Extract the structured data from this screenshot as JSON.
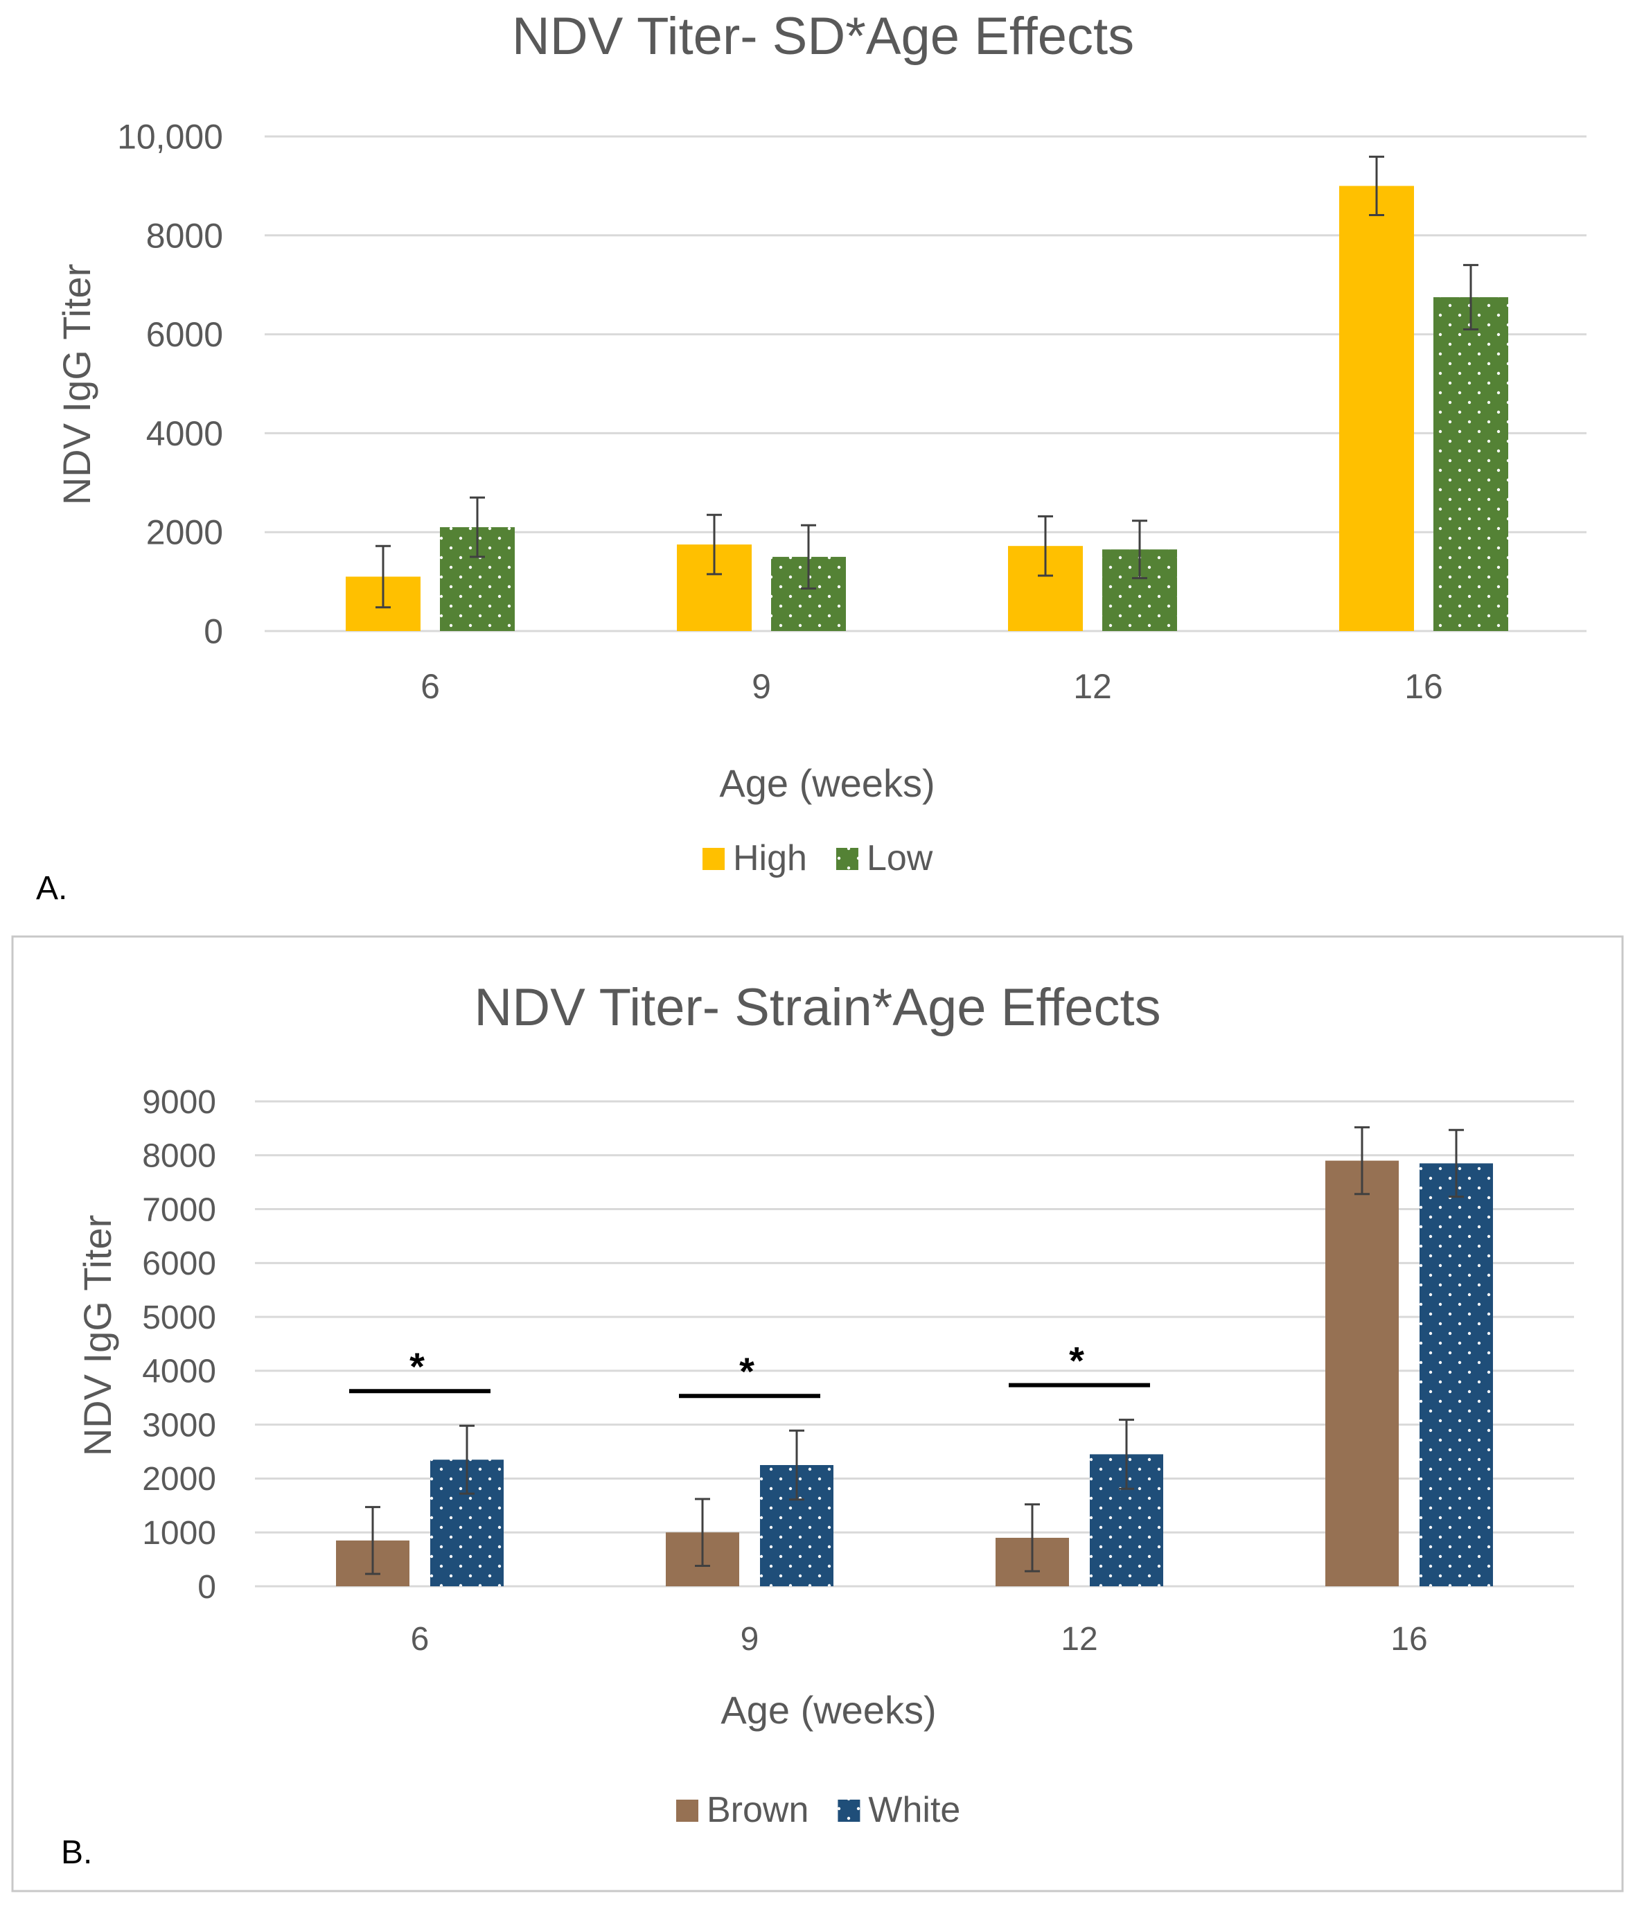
{
  "charts": [
    {
      "panel_label": "A.",
      "chart_data": {
        "type": "bar",
        "title": "NDV Titer- SD*Age Effects",
        "xlabel": "Age (weeks)",
        "ylabel": "NDV IgG Titer",
        "categories": [
          "6",
          "9",
          "12",
          "16"
        ],
        "ylim": [
          0,
          10000
        ],
        "yticks": [
          0,
          2000,
          4000,
          6000,
          8000,
          10000
        ],
        "ytick_labels": [
          "0",
          "2000",
          "4000",
          "6000",
          "8000",
          "10,000"
        ],
        "grid": true,
        "legend_position": "bottom",
        "series": [
          {
            "name": "High",
            "color": "#FFC000",
            "pattern": "solid",
            "values": [
              1100,
              1750,
              1720,
              9000
            ],
            "errors": [
              620,
              600,
              600,
              590
            ]
          },
          {
            "name": "Low",
            "color": "#548235",
            "pattern": "dotted",
            "values": [
              2100,
              1500,
              1650,
              6750
            ],
            "errors": [
              600,
              640,
              580,
              650
            ]
          }
        ],
        "significance": []
      }
    },
    {
      "panel_label": "B.",
      "chart_data": {
        "type": "bar",
        "title": "NDV Titer- Strain*Age Effects",
        "xlabel": "Age (weeks)",
        "ylabel": "NDV IgG Titer",
        "categories": [
          "6",
          "9",
          "12",
          "16"
        ],
        "ylim": [
          0,
          9000
        ],
        "yticks": [
          0,
          1000,
          2000,
          3000,
          4000,
          5000,
          6000,
          7000,
          8000,
          9000
        ],
        "ytick_labels": [
          "0",
          "1000",
          "2000",
          "3000",
          "4000",
          "5000",
          "6000",
          "7000",
          "8000",
          "9000"
        ],
        "grid": true,
        "legend_position": "bottom",
        "series": [
          {
            "name": "Brown",
            "color": "#967153",
            "pattern": "solid",
            "values": [
              850,
              1000,
              900,
              7900
            ],
            "errors": [
              620,
              620,
              620,
              620
            ]
          },
          {
            "name": "White",
            "color": "#1F4E79",
            "pattern": "dotted",
            "values": [
              2350,
              2250,
              2450,
              7850
            ],
            "errors": [
              630,
              640,
              640,
              620
            ]
          }
        ],
        "significance": [
          {
            "category": "6",
            "symbol": "*"
          },
          {
            "category": "9",
            "symbol": "*"
          },
          {
            "category": "12",
            "symbol": "*"
          }
        ]
      }
    }
  ]
}
